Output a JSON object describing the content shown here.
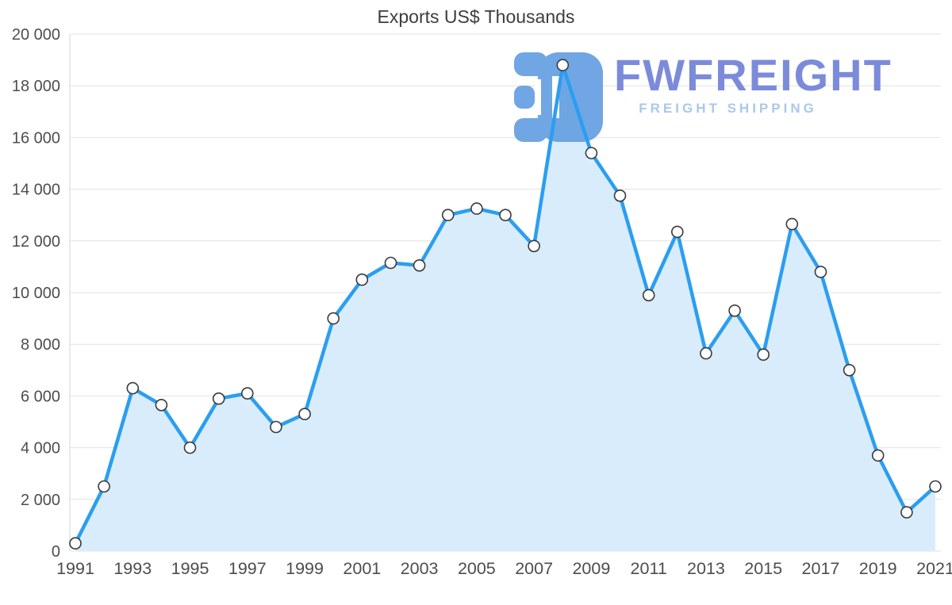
{
  "watermark": {
    "brand": "FWFREIGHT",
    "tagline": "FREIGHT SHIPPING",
    "logo_color": "#69a2e2",
    "brand_color": "#7585d8",
    "tagline_color": "#a6c6ec"
  },
  "chart_data": {
    "type": "line",
    "area": true,
    "title": "Exports US$ Thousands",
    "xlabel": "",
    "ylabel": "",
    "x": [
      1991,
      1992,
      1993,
      1994,
      1995,
      1996,
      1997,
      1998,
      1999,
      2000,
      2001,
      2002,
      2003,
      2004,
      2005,
      2006,
      2007,
      2008,
      2009,
      2010,
      2011,
      2012,
      2013,
      2014,
      2015,
      2016,
      2017,
      2018,
      2019,
      2020,
      2021
    ],
    "values": [
      300,
      2500,
      6300,
      5650,
      4000,
      5900,
      6100,
      4800,
      5300,
      9000,
      10500,
      11150,
      11050,
      13000,
      13250,
      13000,
      11800,
      18800,
      15400,
      13750,
      9900,
      12350,
      7650,
      9300,
      7600,
      12650,
      10800,
      7000,
      3700,
      1500,
      2500
    ],
    "series_name": "Exports US$ Thousands",
    "ylim": [
      0,
      20000
    ],
    "ytick_step": 2000,
    "ytick_labels": [
      "0",
      "2 000",
      "4 000",
      "6 000",
      "8 000",
      "10 000",
      "12 000",
      "14 000",
      "16 000",
      "18 000",
      "20 000"
    ],
    "xticks": [
      1991,
      1993,
      1995,
      1997,
      1999,
      2001,
      2003,
      2005,
      2007,
      2009,
      2011,
      2013,
      2015,
      2017,
      2019,
      2021
    ],
    "xtick_labels": [
      "1991",
      "1993",
      "1995",
      "1997",
      "1999",
      "2001",
      "2003",
      "2005",
      "2007",
      "2009",
      "2011",
      "2013",
      "2015",
      "2017",
      "2019",
      "2021"
    ],
    "grid": true,
    "legend": "none",
    "colors": {
      "line": "#2b9ef0",
      "fill": "#d9ecfb",
      "grid": "#e2e2e2",
      "axis_line": "#d5d5d5",
      "axis_text": "#4d4d4d",
      "marker_fill": "#ffffff",
      "marker_stroke": "#3a3a3a"
    }
  }
}
